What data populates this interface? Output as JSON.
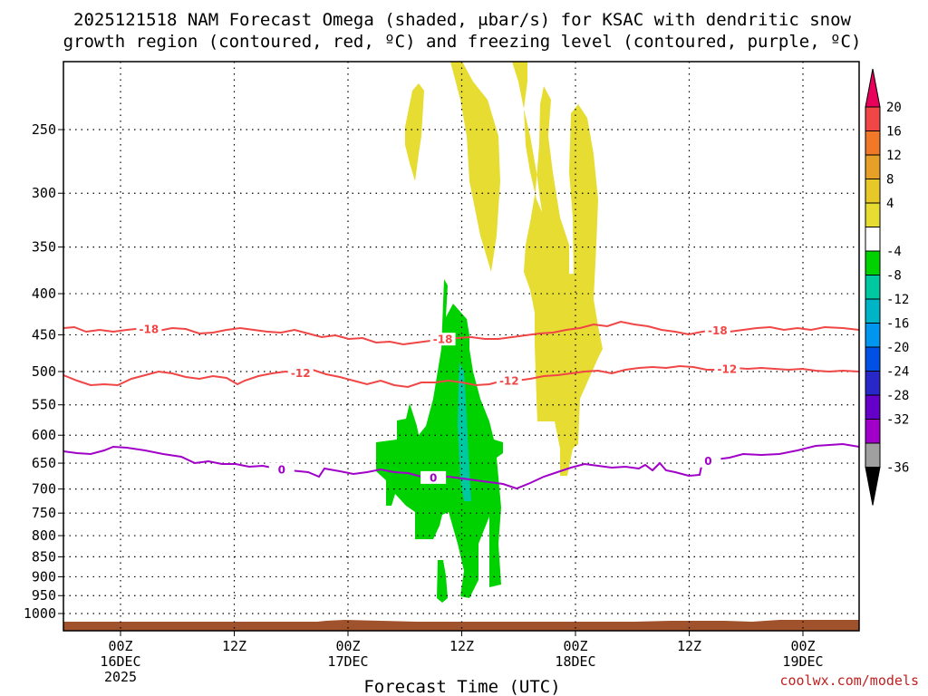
{
  "title_line1": "2025121518 NAM Forecast Omega (shaded, μbar/s) for KSAC with dendritic snow",
  "title_line2": "growth region (contoured, red, ºC) and freezing level (contoured, purple, ºC)",
  "credit": "coolwx.com/models",
  "colors": {
    "omega_4_8": "#e6dc32",
    "omega_m4_m8": "#00d200",
    "omega_m8_m12": "#00c8a0",
    "dgz": "#f04646",
    "freezing": "#a000c8",
    "ground": "#a0522d",
    "grid": "#000000"
  },
  "chart_data": {
    "type": "time-height cross section",
    "xlabel": "Forecast Time (UTC)",
    "x_ticks": [
      {
        "time": "2025-12-16T00Z",
        "l1": "00Z",
        "l2": "16DEC",
        "l3": "2025"
      },
      {
        "time": "2025-12-16T12Z",
        "l1": "12Z",
        "l2": "",
        "l3": ""
      },
      {
        "time": "2025-12-17T00Z",
        "l1": "00Z",
        "l2": "17DEC",
        "l3": ""
      },
      {
        "time": "2025-12-17T12Z",
        "l1": "12Z",
        "l2": "",
        "l3": ""
      },
      {
        "time": "2025-12-18T00Z",
        "l1": "00Z",
        "l2": "18DEC",
        "l3": ""
      },
      {
        "time": "2025-12-18T12Z",
        "l1": "12Z",
        "l2": "",
        "l3": ""
      },
      {
        "time": "2025-12-19T00Z",
        "l1": "00Z",
        "l2": "19DEC",
        "l3": ""
      }
    ],
    "y_ticks": [
      "250",
      "300",
      "350",
      "400",
      "450",
      "500",
      "550",
      "600",
      "650",
      "700",
      "750",
      "800",
      "850",
      "900",
      "950",
      "1000"
    ],
    "y_scale": "log pressure (mb), inverted",
    "grid": true,
    "colorbar": {
      "units": "μbar/s",
      "labels": [
        "20",
        "16",
        "12",
        "8",
        "4",
        "-4",
        "-8",
        "-12",
        "-16",
        "-20",
        "-24",
        "-28",
        "-32",
        "-36"
      ],
      "colors": [
        "#e8005a",
        "#f04646",
        "#f07828",
        "#e6a028",
        "#e6c828",
        "#e6dc32",
        "#ffffff",
        "#00d200",
        "#00c8a0",
        "#00b4c8",
        "#0096f0",
        "#0050e6",
        "#2828c8",
        "#6400c8",
        "#a000c8",
        "#a0a0a0",
        "#000000"
      ]
    },
    "contours": [
      {
        "label": "-18",
        "color": "red",
        "label_times": [
          "2025-12-16T03Z",
          "2025-12-17T10Z",
          "2025-12-18T15Z"
        ]
      },
      {
        "label": "-12",
        "color": "red",
        "label_times": [
          "2025-12-16T19Z",
          "2025-12-17T17Z",
          "2025-12-18T16Z"
        ]
      },
      {
        "label": "0",
        "color": "purple",
        "label_times": [
          "2025-12-16T17Z",
          "2025-12-17T09Z",
          "2025-12-18T14Z"
        ]
      }
    ],
    "shaded_areas": [
      {
        "range": "4 to 8",
        "approx_time_span": "2025-12-17T06Z to 2025-12-18T03Z",
        "approx_pressure_span": "200 to 680 mb"
      },
      {
        "range": "-4 to -8",
        "approx_time_span": "2025-12-17T03Z to 2025-12-17T16Z",
        "approx_pressure_span": "385 to 960 mb"
      },
      {
        "range": "-8 to -12",
        "approx_time_span": "2025-12-17T12Z to 2025-12-17T13Z",
        "approx_pressure_span": "510 to 720 mb"
      }
    ]
  }
}
